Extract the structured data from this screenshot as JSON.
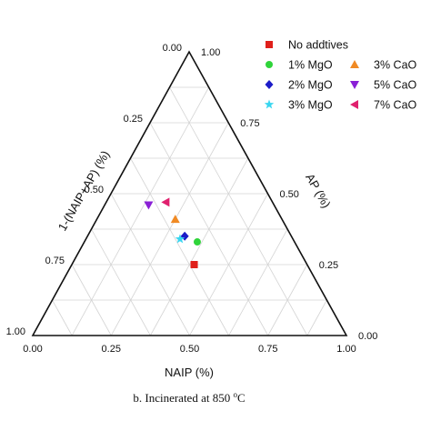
{
  "chart_data": {
    "type": "scatter",
    "subtype": "ternary",
    "grid": true,
    "legend_placement": "top-right",
    "axes": {
      "bottom": {
        "label": "NAIP (%)",
        "ticks": [
          "0.00",
          "0.25",
          "0.50",
          "0.75",
          "1.00"
        ]
      },
      "right": {
        "label": "AP (%)",
        "ticks": [
          "0.00",
          "0.25",
          "0.50",
          "0.75",
          "1.00"
        ]
      },
      "left": {
        "label": "1-(NAIP+AP) (%)",
        "ticks": [
          "0.00",
          "0.25",
          "0.50",
          "0.75",
          "1.00"
        ]
      }
    },
    "series": [
      {
        "name": "No addtives",
        "marker": "square",
        "color": "#e0201b",
        "naip": 0.39,
        "ap": 0.25
      },
      {
        "name": "1% MgO",
        "marker": "circle",
        "color": "#2fd43a",
        "naip": 0.36,
        "ap": 0.33
      },
      {
        "name": "2% MgO",
        "marker": "diamond",
        "color": "#1c1cc8",
        "naip": 0.31,
        "ap": 0.35
      },
      {
        "name": "3% MgO",
        "marker": "star",
        "color": "#39d6f0",
        "naip": 0.3,
        "ap": 0.34
      },
      {
        "name": "3% CaO",
        "marker": "triangle-up",
        "color": "#f08a24",
        "naip": 0.25,
        "ap": 0.41
      },
      {
        "name": "5% CaO",
        "marker": "triangle-down",
        "color": "#8a20d6",
        "naip": 0.14,
        "ap": 0.46
      },
      {
        "name": "7% CaO",
        "marker": "triangle-left",
        "color": "#e0206e",
        "naip": 0.19,
        "ap": 0.47
      }
    ],
    "caption": {
      "prefix": "b. Incinerated at 850 ",
      "superscript": "o",
      "suffix": "C"
    }
  }
}
